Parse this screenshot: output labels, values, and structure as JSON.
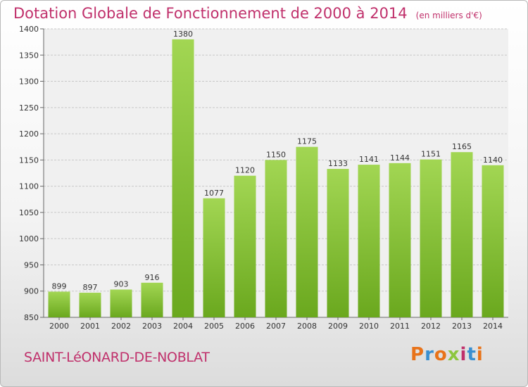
{
  "chart_data": {
    "type": "bar",
    "title": "Dotation Globale de Fonctionnement de 2000 à 2014",
    "subtitle": "(en milliers d'€)",
    "categories": [
      "2000",
      "2001",
      "2002",
      "2003",
      "2004",
      "2005",
      "2006",
      "2007",
      "2008",
      "2009",
      "2010",
      "2011",
      "2012",
      "2013",
      "2014"
    ],
    "values": [
      899,
      897,
      903,
      916,
      1380,
      1077,
      1120,
      1150,
      1175,
      1133,
      1141,
      1144,
      1151,
      1165,
      1140
    ],
    "ylim": [
      850,
      1400
    ],
    "yticks": [
      850,
      900,
      950,
      1000,
      1050,
      1100,
      1150,
      1200,
      1250,
      1300,
      1350,
      1400
    ],
    "grid": true,
    "bar_color": "#8cc63f",
    "xlabel": "",
    "ylabel": ""
  },
  "footer": {
    "commune": "SAINT-LéONARD-DE-NOBLAT",
    "logo_text": "Proxiti",
    "logo_colors": [
      "#e8731a",
      "#3a8fd0",
      "#e8731a",
      "#8cc63f",
      "#c0306b",
      "#3a8fd0",
      "#e8731a"
    ]
  }
}
